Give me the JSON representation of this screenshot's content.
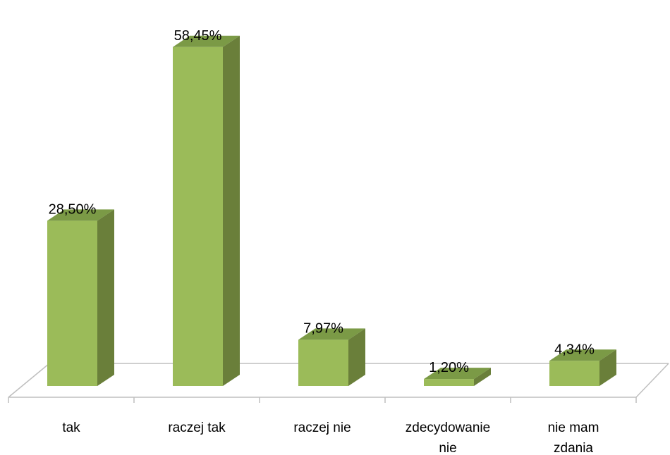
{
  "chart_data": {
    "type": "bar",
    "style": "3d-column",
    "categories": [
      "tak",
      "raczej tak",
      "raczej nie",
      "zdecydowanie nie",
      "nie mam zdania"
    ],
    "category_lines": [
      [
        "tak"
      ],
      [
        "raczej tak"
      ],
      [
        "raczej nie"
      ],
      [
        "zdecydowanie",
        "nie"
      ],
      [
        "nie mam",
        "zdania"
      ]
    ],
    "values": [
      28.5,
      58.45,
      7.97,
      1.2,
      4.34
    ],
    "data_labels": [
      "28,50%",
      "58,45%",
      "7,97%",
      "1,20%",
      "4,34%"
    ],
    "title": "",
    "xlabel": "",
    "ylabel": "",
    "ylim": [
      0,
      60
    ],
    "grid": false,
    "legend": "none",
    "colors": {
      "front": "#9bbb59",
      "top": "#7b9a46",
      "side": "#6a7f3a",
      "floor": "#bfbfbf"
    }
  }
}
